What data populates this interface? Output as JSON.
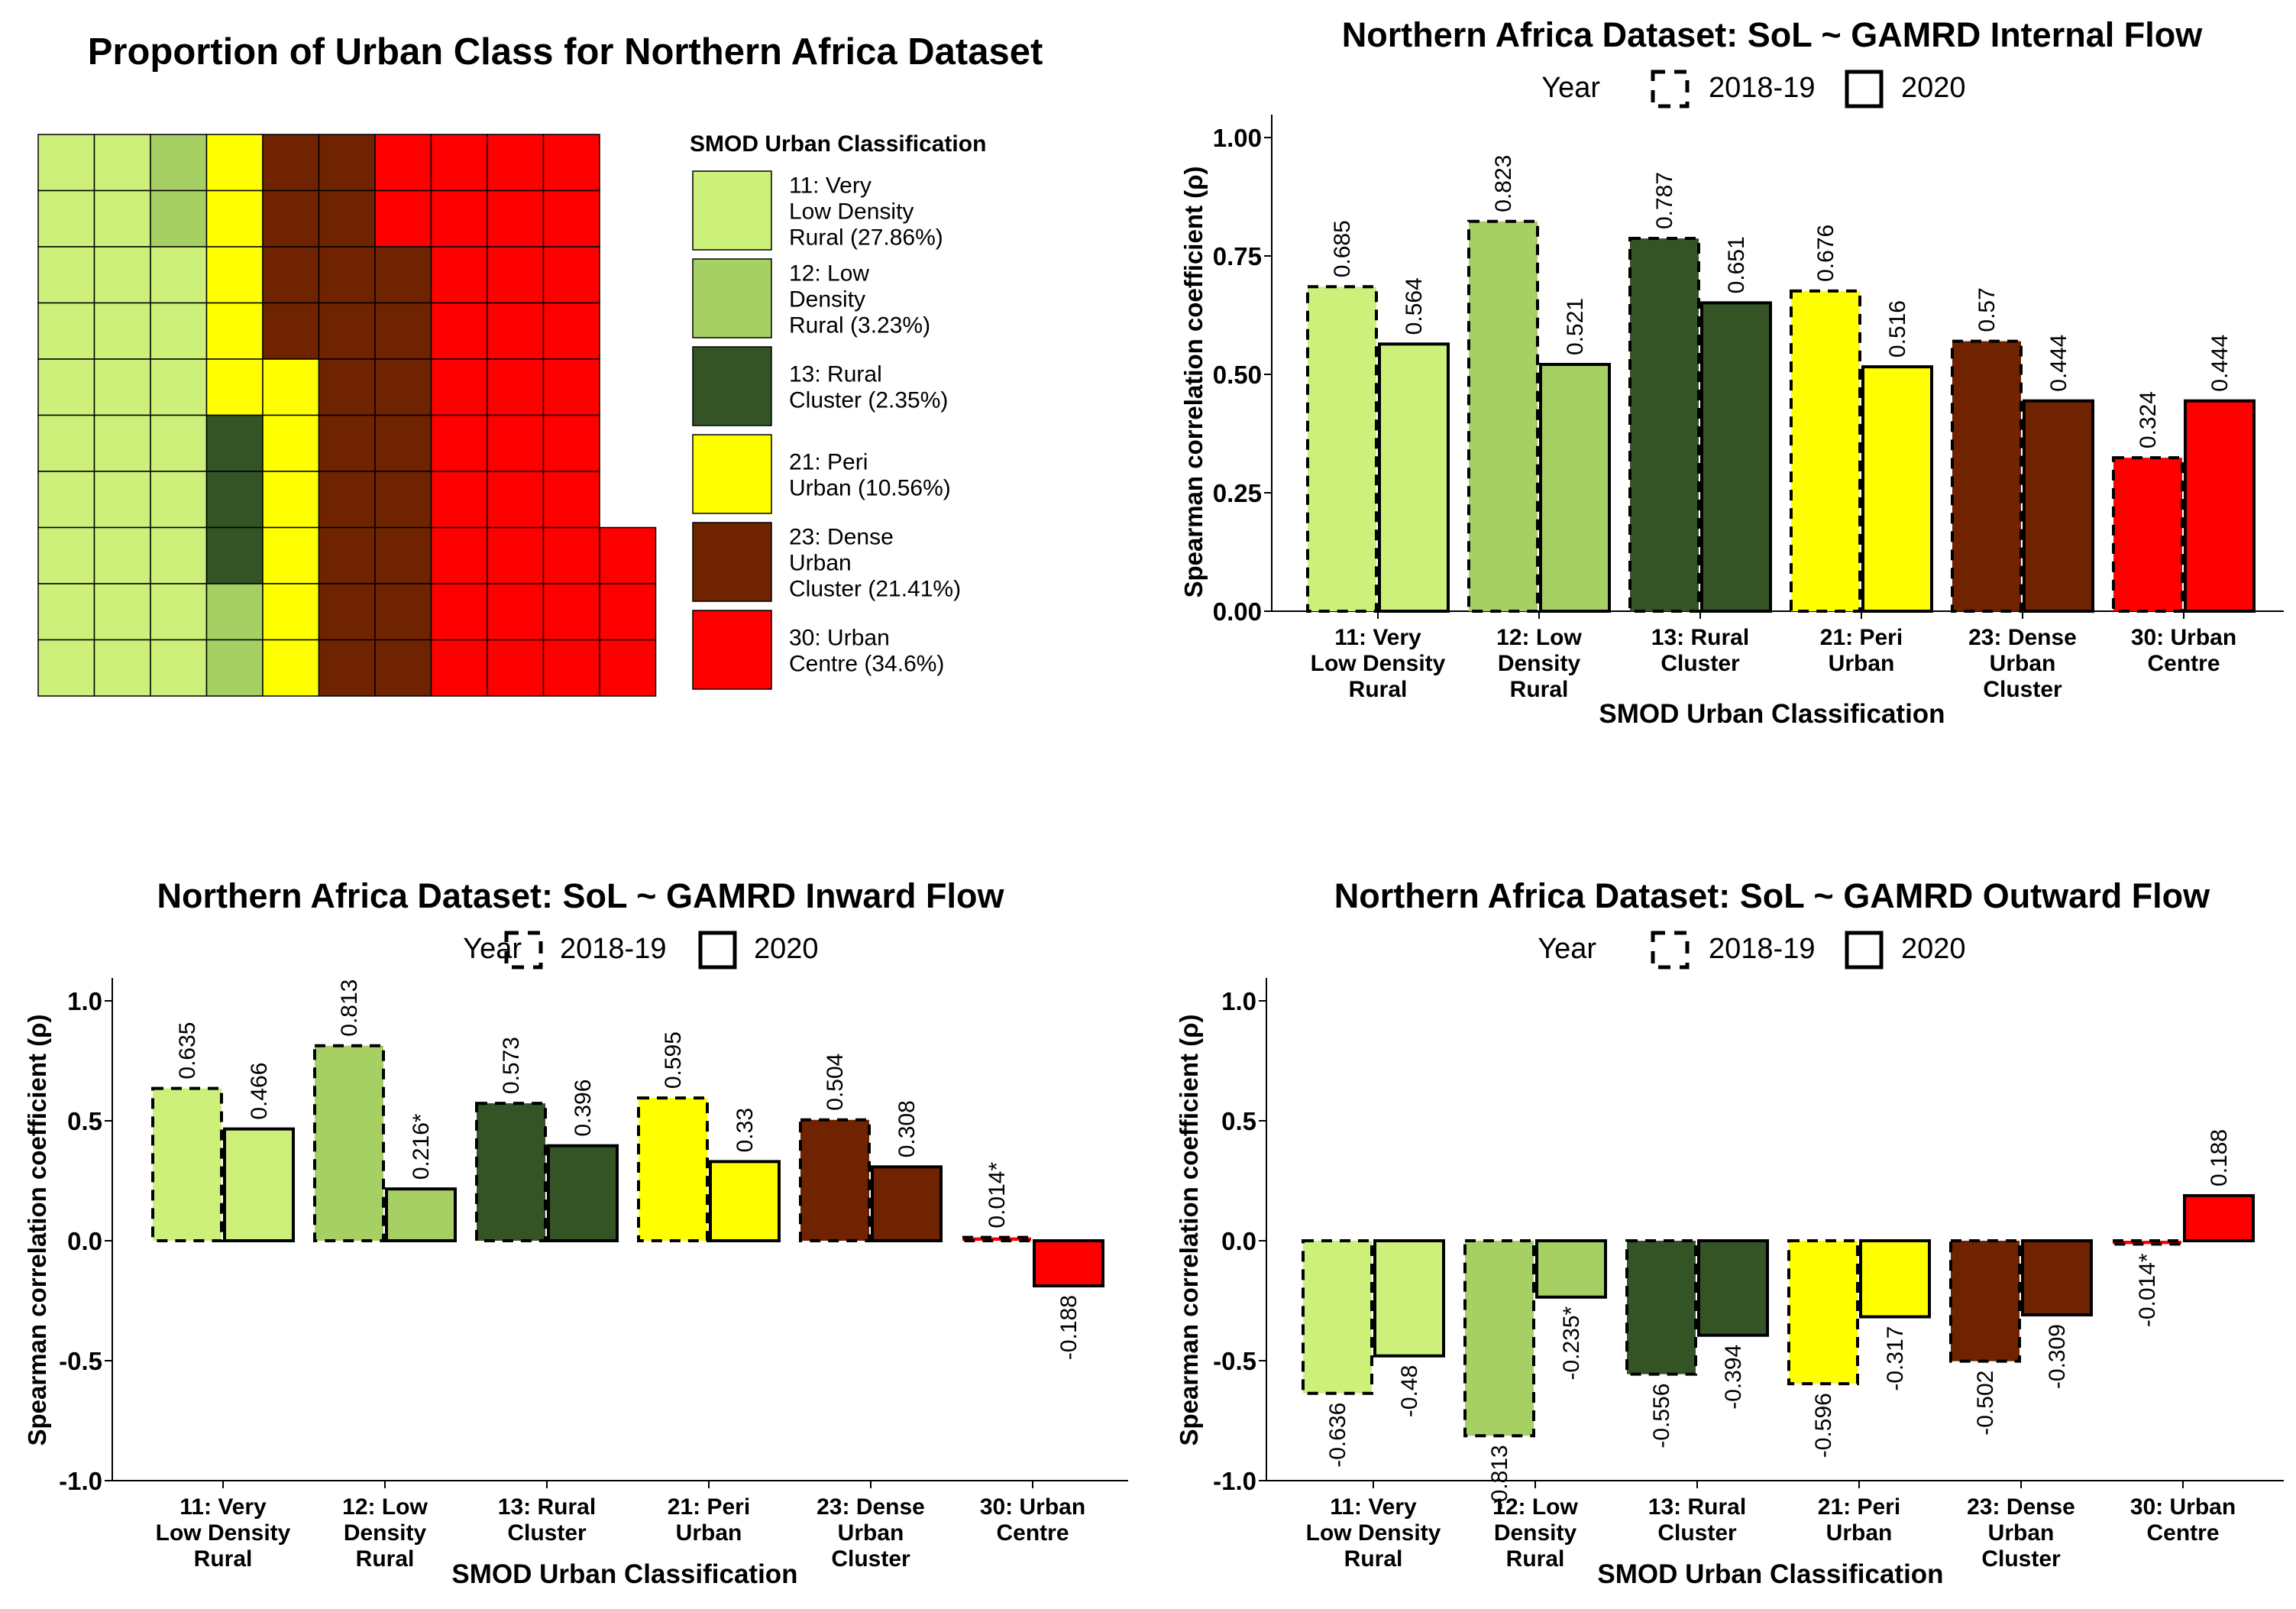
{
  "colors": {
    "c11": "#ccf07a",
    "c12": "#a6d064",
    "c13": "#345425",
    "c21": "#ffff00",
    "c23": "#6f2300",
    "c30": "#ff0000"
  },
  "chart_data": [
    {
      "type": "waffle",
      "title": "Proportion of Urban Class for Northern Africa Dataset",
      "legend_title": "SMOD Urban Classification",
      "legend_items": [
        {
          "label": "11: Very Low Density Rural (27.86%)",
          "lines": [
            "11: Very",
            "Low Density",
            "Rural (27.86%)"
          ],
          "color": "#ccf07a",
          "percent": 27.86
        },
        {
          "label": "12: Low Density Rural (3.23%)",
          "lines": [
            "12: Low",
            "Density",
            "Rural (3.23%)"
          ],
          "color": "#a6d064",
          "percent": 3.23
        },
        {
          "label": "13: Rural Cluster (2.35%)",
          "lines": [
            "13: Rural",
            "Cluster (2.35%)"
          ],
          "color": "#345425",
          "percent": 2.35
        },
        {
          "label": "21: Peri Urban (10.56%)",
          "lines": [
            "21: Peri",
            "Urban (10.56%)"
          ],
          "color": "#ffff00",
          "percent": 10.56
        },
        {
          "label": "23: Dense Urban Cluster (21.41%)",
          "lines": [
            "23: Dense",
            "Urban",
            "Cluster (21.41%)"
          ],
          "color": "#6f2300",
          "percent": 21.41
        },
        {
          "label": "30: Urban Centre (34.6%)",
          "lines": [
            "30: Urban",
            "Centre (34.6%)"
          ],
          "color": "#ff0000",
          "percent": 34.6
        }
      ],
      "grid": [
        [
          "11",
          "11",
          "12",
          "21",
          "23",
          "23",
          "30",
          "30",
          "30",
          "30",
          ""
        ],
        [
          "11",
          "11",
          "12",
          "21",
          "23",
          "23",
          "30",
          "30",
          "30",
          "30",
          ""
        ],
        [
          "11",
          "11",
          "11",
          "21",
          "23",
          "23",
          "23",
          "30",
          "30",
          "30",
          ""
        ],
        [
          "11",
          "11",
          "11",
          "21",
          "23",
          "23",
          "23",
          "30",
          "30",
          "30",
          ""
        ],
        [
          "11",
          "11",
          "11",
          "21",
          "21",
          "23",
          "23",
          "30",
          "30",
          "30",
          ""
        ],
        [
          "11",
          "11",
          "11",
          "13",
          "21",
          "23",
          "23",
          "30",
          "30",
          "30",
          ""
        ],
        [
          "11",
          "11",
          "11",
          "13",
          "21",
          "23",
          "23",
          "30",
          "30",
          "30",
          ""
        ],
        [
          "11",
          "11",
          "11",
          "13",
          "21",
          "23",
          "23",
          "30",
          "30",
          "30",
          "30"
        ],
        [
          "11",
          "11",
          "11",
          "12",
          "21",
          "23",
          "23",
          "30",
          "30",
          "30",
          "30"
        ],
        [
          "11",
          "11",
          "11",
          "12",
          "21",
          "23",
          "23",
          "30",
          "30",
          "30",
          "30"
        ]
      ]
    },
    {
      "type": "bar",
      "title": "Northern Africa Dataset: SoL ~ GAMRD Internal Flow",
      "xlabel": "SMOD Urban Classification",
      "ylabel": "Spearman correlation coefficient  (ρ)",
      "legend_title": "Year",
      "legend_labels": [
        "2018-19",
        "2020"
      ],
      "ylim": [
        0,
        1.0
      ],
      "yticks": [
        0,
        0.25,
        0.5,
        0.75,
        1.0
      ],
      "ytick_labels": [
        "0.00",
        "0.25",
        "0.50",
        "0.75",
        "1.00"
      ],
      "categories": [
        [
          "11: Very",
          "Low Density",
          "Rural"
        ],
        [
          "12: Low",
          "Density",
          "Rural"
        ],
        [
          "13: Rural",
          "Cluster"
        ],
        [
          "21: Peri",
          "Urban"
        ],
        [
          "23: Dense",
          "Urban",
          "Cluster"
        ],
        [
          "30: Urban",
          "Centre"
        ]
      ],
      "series": [
        {
          "name": "2018-19",
          "values": [
            0.685,
            0.823,
            0.787,
            0.676,
            0.57,
            0.324
          ],
          "labels": [
            "0.685",
            "0.823",
            "0.787",
            "0.676",
            "0.57",
            "0.324"
          ]
        },
        {
          "name": "2020",
          "values": [
            0.564,
            0.521,
            0.651,
            0.516,
            0.444,
            0.444
          ],
          "labels": [
            "0.564",
            "0.521",
            "0.651",
            "0.516",
            "0.444",
            "0.444"
          ]
        }
      ]
    },
    {
      "type": "bar",
      "title": "Northern Africa Dataset: SoL ~ GAMRD Inward Flow",
      "xlabel": "SMOD Urban Classification",
      "ylabel": "Spearman correlation coefficient  (ρ)",
      "legend_title": "Year",
      "legend_labels": [
        "2018-19",
        "2020"
      ],
      "ylim": [
        -1.0,
        1.0
      ],
      "yticks": [
        -1.0,
        -0.5,
        0.0,
        0.5,
        1.0
      ],
      "ytick_labels": [
        "-1.0",
        "-0.5",
        "0.0",
        "0.5",
        "1.0"
      ],
      "categories": [
        [
          "11: Very",
          "Low Density",
          "Rural"
        ],
        [
          "12: Low",
          "Density",
          "Rural"
        ],
        [
          "13: Rural",
          "Cluster"
        ],
        [
          "21: Peri",
          "Urban"
        ],
        [
          "23: Dense",
          "Urban",
          "Cluster"
        ],
        [
          "30: Urban",
          "Centre"
        ]
      ],
      "series": [
        {
          "name": "2018-19",
          "values": [
            0.635,
            0.813,
            0.573,
            0.595,
            0.504,
            0.014
          ],
          "labels": [
            "0.635",
            "0.813",
            "0.573",
            "0.595",
            "0.504",
            "0.014*"
          ]
        },
        {
          "name": "2020",
          "values": [
            0.466,
            0.216,
            0.396,
            0.33,
            0.308,
            -0.188
          ],
          "labels": [
            "0.466",
            "0.216*",
            "0.396",
            "0.33",
            "0.308",
            "-0.188"
          ]
        }
      ]
    },
    {
      "type": "bar",
      "title": "Northern Africa Dataset: SoL ~ GAMRD Outward Flow",
      "xlabel": "SMOD Urban Classification",
      "ylabel": "Spearman correlation coefficient  (ρ)",
      "legend_title": "Year",
      "legend_labels": [
        "2018-19",
        "2020"
      ],
      "ylim": [
        -1.0,
        1.0
      ],
      "yticks": [
        -1.0,
        -0.5,
        0.0,
        0.5,
        1.0
      ],
      "ytick_labels": [
        "-1.0",
        "-0.5",
        "0.0",
        "0.5",
        "1.0"
      ],
      "categories": [
        [
          "11: Very",
          "Low Density",
          "Rural"
        ],
        [
          "12: Low",
          "Density",
          "Rural"
        ],
        [
          "13: Rural",
          "Cluster"
        ],
        [
          "21: Peri",
          "Urban"
        ],
        [
          "23: Dense",
          "Urban",
          "Cluster"
        ],
        [
          "30: Urban",
          "Centre"
        ]
      ],
      "series": [
        {
          "name": "2018-19",
          "values": [
            -0.636,
            -0.813,
            -0.556,
            -0.596,
            -0.502,
            -0.014
          ],
          "labels": [
            "-0.636",
            "-0.813",
            "-0.556",
            "-0.596",
            "-0.502",
            "-0.014*"
          ]
        },
        {
          "name": "2020",
          "values": [
            -0.48,
            -0.235,
            -0.394,
            -0.317,
            -0.309,
            0.188
          ],
          "labels": [
            "-0.48",
            "-0.235*",
            "-0.394",
            "-0.317",
            "-0.309",
            "0.188"
          ]
        }
      ]
    }
  ]
}
